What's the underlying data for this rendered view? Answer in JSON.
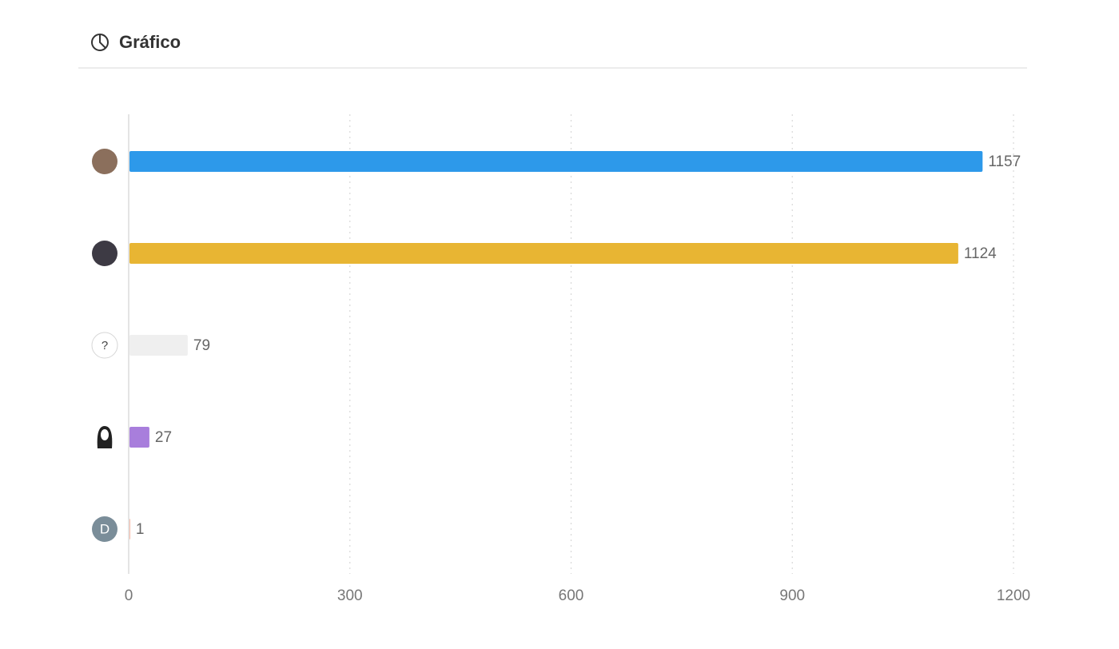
{
  "header": {
    "title": "Gráfico"
  },
  "chart_data": {
    "type": "bar",
    "orientation": "horizontal",
    "categories": [
      null,
      null,
      "?",
      null,
      "D"
    ],
    "values": [
      1157,
      1124,
      79,
      27,
      1
    ],
    "colors": [
      "#2d99ea",
      "#e8b533",
      "#efefef",
      "#a87edc",
      "#f6b8a6"
    ],
    "xlim": [
      0,
      1200
    ],
    "xticks": [
      0,
      300,
      600,
      900,
      1200
    ],
    "grid": true
  }
}
